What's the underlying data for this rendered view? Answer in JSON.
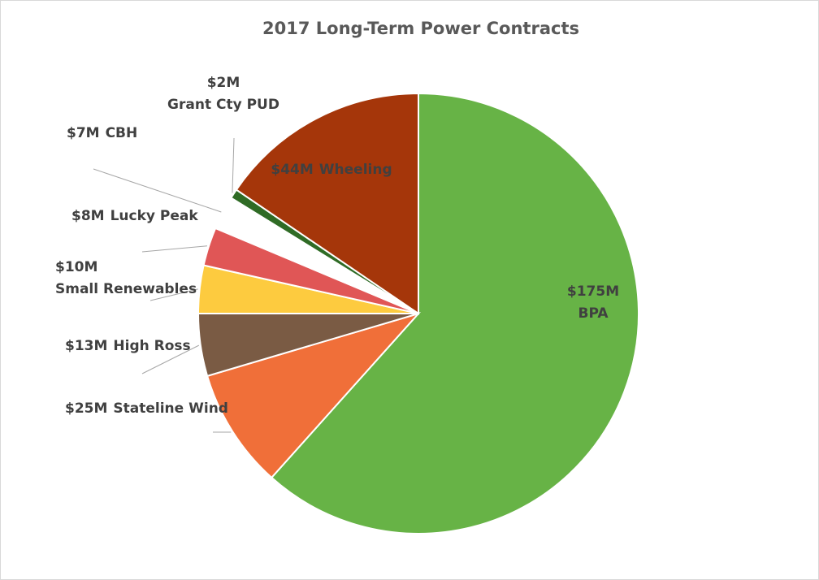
{
  "chart_data": {
    "type": "pie",
    "title": "2017 Long-Term Power Contracts",
    "categories": [
      "BPA",
      "Stateline Wind",
      "High Ross",
      "Small Renewables",
      "Lucky Peak",
      "CBH",
      "Grant Cty PUD",
      "Wheeling"
    ],
    "values": [
      175,
      25,
      13,
      10,
      8,
      7,
      2,
      44
    ],
    "value_labels": [
      "$175M",
      "$25M",
      "$13M",
      "$10M",
      "$8M",
      "$7M",
      "$2M",
      "$44M"
    ],
    "colors": [
      "#67b346",
      "#f06f39",
      "#7a5b44",
      "#fdcb3f",
      "#e05656",
      "#ffffff",
      "#2f6b25",
      "#a5360a"
    ]
  }
}
